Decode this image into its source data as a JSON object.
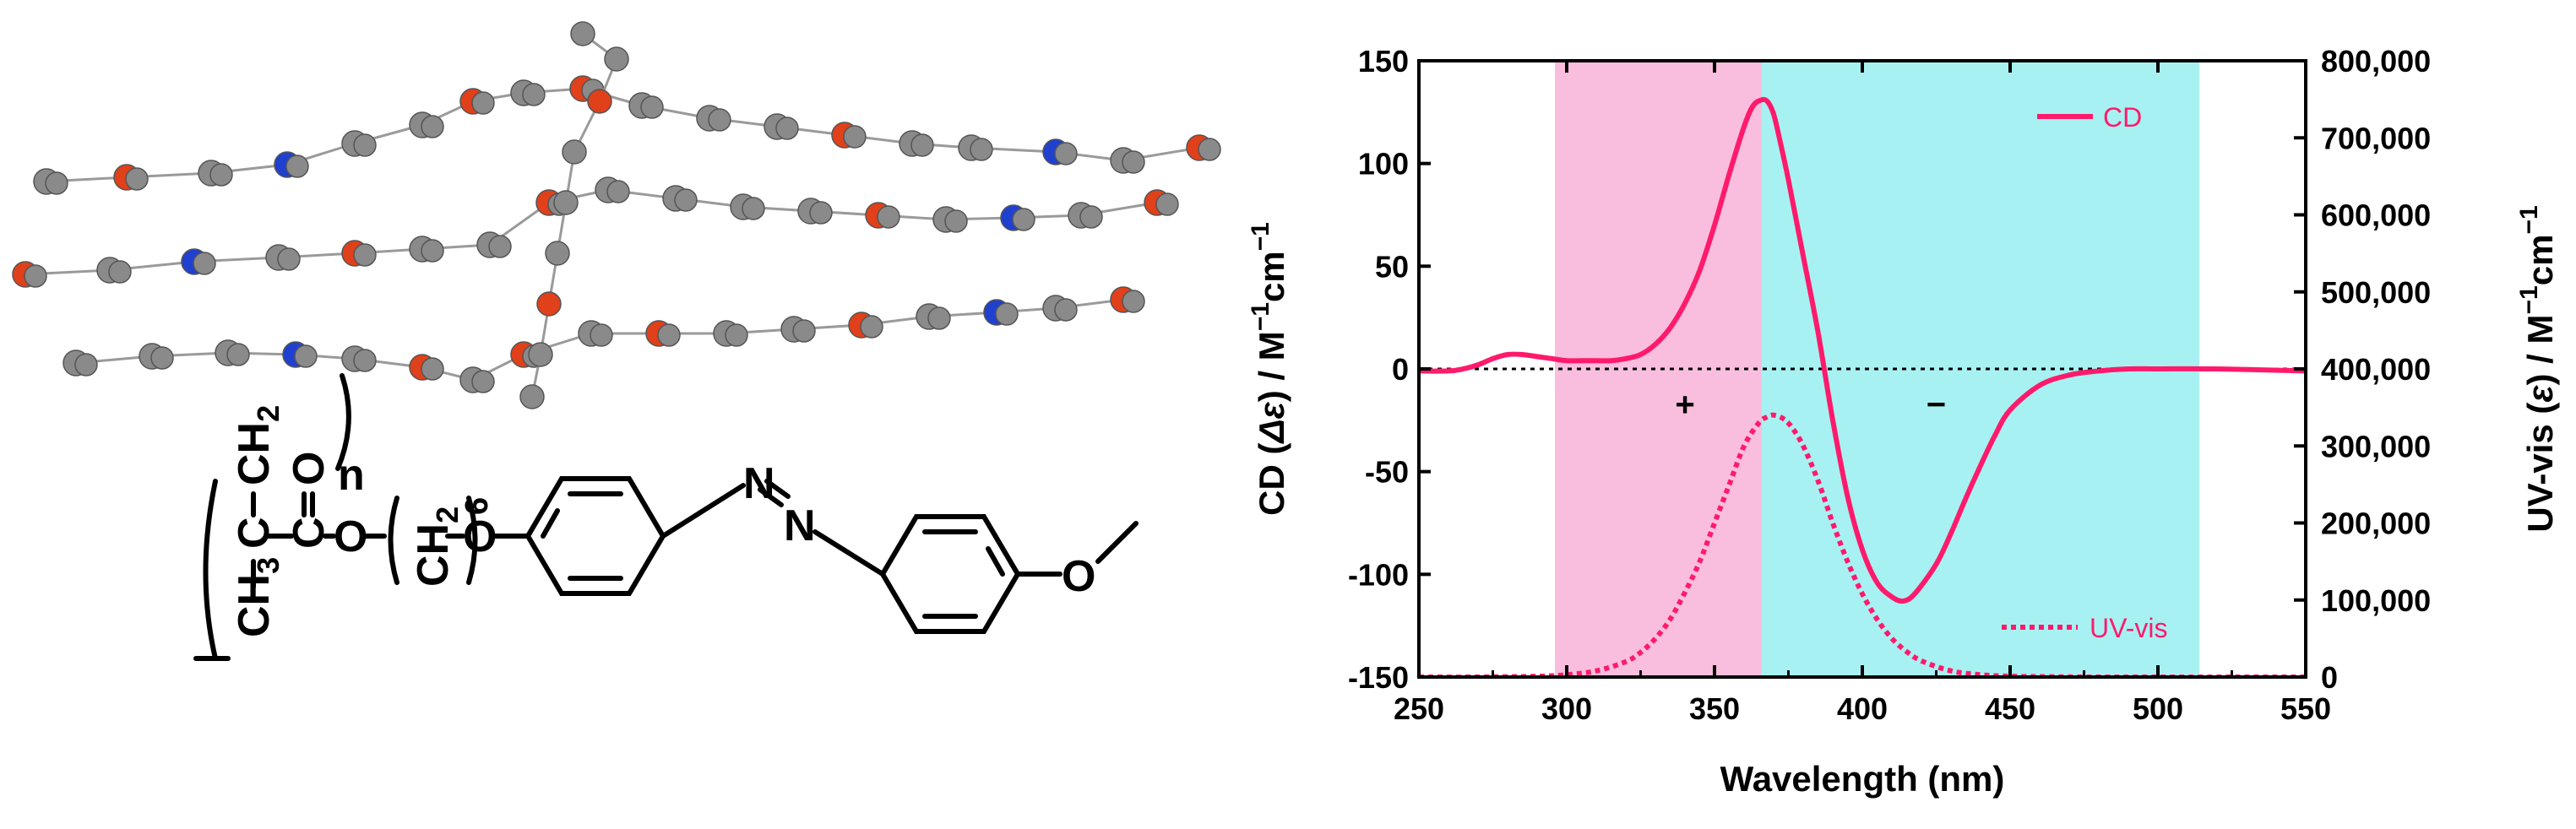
{
  "structure": {
    "labels": {
      "n": "n",
      "ch3": "CH",
      "ch3_sub": "3",
      "c_backbone": "C",
      "ch2": "CH",
      "ch2_sub": "2",
      "o_carbonyl": "O",
      "c_carbonyl": "C",
      "o_ester": "O",
      "ch2_spacer": "CH",
      "ch2_spacer_sub": "2",
      "spacer_count": "6",
      "o_ether": "O",
      "n_azo_top": "N",
      "n_azo_bottom": "N",
      "o_methoxy": "O"
    }
  },
  "chart_data": {
    "type": "line",
    "xlabel_base": "Wavelength (nm)",
    "ylabel_left_parts": [
      "CD (",
      "Δε",
      ") / M",
      "−1",
      "cm",
      "−1"
    ],
    "ylabel_right_parts": [
      "UV-vis (",
      "ε",
      ") / M",
      "−1",
      "cm",
      "−1"
    ],
    "xlim": [
      250,
      550
    ],
    "ylim_left": [
      -150,
      150
    ],
    "ylim_right": [
      0,
      800000
    ],
    "x_ticks": [
      250,
      300,
      350,
      400,
      450,
      500,
      550
    ],
    "x_tick_labels": [
      "250",
      "300",
      "350",
      "400",
      "450",
      "500",
      "550"
    ],
    "y_left_ticks": [
      -150,
      -100,
      -50,
      0,
      50,
      100,
      150
    ],
    "y_left_tick_labels": [
      "-150",
      "-100",
      "-50",
      "0",
      "50",
      "100",
      "150"
    ],
    "y_right_ticks": [
      0,
      100000,
      200000,
      300000,
      400000,
      500000,
      600000,
      700000,
      800000
    ],
    "y_right_tick_labels": [
      "0",
      "100,000",
      "200,000",
      "300,000",
      "400,000",
      "500,000",
      "600,000",
      "700,000",
      "800,000"
    ],
    "zero_line": 0,
    "regions": [
      {
        "x_start": 296,
        "x_end": 366,
        "color": "#f9bedd"
      },
      {
        "x_start": 366,
        "x_end": 514,
        "color": "#a8f1f2"
      }
    ],
    "annotations": [
      {
        "text": "+",
        "x": 340,
        "y": -17
      },
      {
        "text": "−",
        "x": 425,
        "y": -17
      }
    ],
    "legend_placement": "top-right / bottom-right",
    "series": [
      {
        "name": "CD",
        "axis": "left",
        "style": "solid",
        "color": "#ff1a6c",
        "x": [
          250,
          260,
          265,
          270,
          275,
          280,
          285,
          290,
          295,
          300,
          305,
          310,
          315,
          320,
          325,
          330,
          335,
          340,
          345,
          350,
          355,
          360,
          363,
          366,
          368,
          370,
          372,
          375,
          380,
          385,
          390,
          395,
          400,
          405,
          410,
          414,
          418,
          425,
          430,
          435,
          440,
          445,
          450,
          460,
          470,
          480,
          490,
          500,
          520,
          550
        ],
        "y": [
          -1,
          -1,
          0,
          2,
          5,
          7,
          7,
          6,
          5,
          4,
          4,
          4,
          4,
          5,
          7,
          12,
          20,
          32,
          48,
          70,
          95,
          118,
          128,
          131,
          130,
          124,
          112,
          92,
          55,
          18,
          -25,
          -62,
          -88,
          -104,
          -111,
          -113,
          -109,
          -95,
          -80,
          -63,
          -47,
          -32,
          -20,
          -8,
          -3,
          -1,
          0,
          0,
          0,
          -1
        ]
      },
      {
        "name": "UV-vis",
        "axis": "right",
        "style": "dotted",
        "color": "#ff1a6c",
        "x": [
          250,
          270,
          290,
          300,
          310,
          320,
          325,
          330,
          335,
          340,
          345,
          350,
          355,
          360,
          365,
          368,
          370,
          373,
          376,
          380,
          385,
          390,
          395,
          400,
          405,
          410,
          415,
          420,
          430,
          440,
          450,
          460,
          480,
          500,
          550
        ],
        "y": [
          0,
          0,
          1000,
          3000,
          8000,
          20000,
          32000,
          50000,
          75000,
          110000,
          150000,
          200000,
          250000,
          300000,
          330000,
          338000,
          340000,
          336000,
          325000,
          300000,
          255000,
          200000,
          150000,
          108000,
          75000,
          50000,
          33000,
          21000,
          8000,
          3000,
          1000,
          500,
          0,
          0,
          0
        ]
      }
    ]
  }
}
